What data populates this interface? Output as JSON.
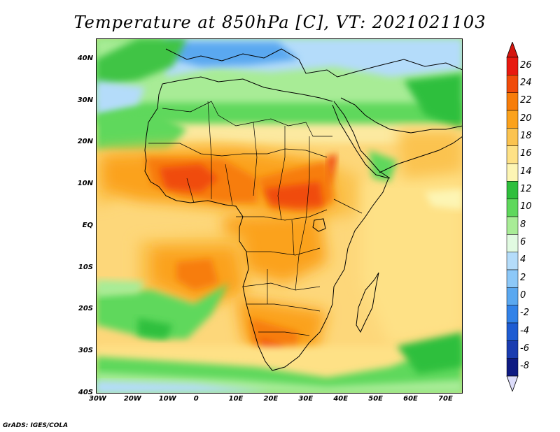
{
  "title": "Temperature at 850hPa [C], VT: 2021021103",
  "footer": "GrADS: IGES/COLA",
  "map": {
    "region": "Africa",
    "lon_range": [
      -30,
      75
    ],
    "lat_range": [
      -40,
      45
    ],
    "lat_ticks": [
      {
        "value": 40,
        "label": "40N"
      },
      {
        "value": 30,
        "label": "30N"
      },
      {
        "value": 20,
        "label": "20N"
      },
      {
        "value": 10,
        "label": "10N"
      },
      {
        "value": 0,
        "label": "EQ"
      },
      {
        "value": -10,
        "label": "10S"
      },
      {
        "value": -20,
        "label": "20S"
      },
      {
        "value": -30,
        "label": "30S"
      },
      {
        "value": -40,
        "label": "40S"
      }
    ],
    "lon_ticks": [
      {
        "value": -30,
        "label": "30W"
      },
      {
        "value": -20,
        "label": "20W"
      },
      {
        "value": -10,
        "label": "10W"
      },
      {
        "value": 0,
        "label": "0"
      },
      {
        "value": 10,
        "label": "10E"
      },
      {
        "value": 20,
        "label": "20E"
      },
      {
        "value": 30,
        "label": "30E"
      },
      {
        "value": 40,
        "label": "40E"
      },
      {
        "value": 50,
        "label": "50E"
      },
      {
        "value": 60,
        "label": "60E"
      },
      {
        "value": 70,
        "label": "70E"
      }
    ]
  },
  "colorbar": {
    "labels": [
      "26",
      "24",
      "22",
      "20",
      "18",
      "16",
      "14",
      "12",
      "10",
      "8",
      "6",
      "4",
      "2",
      "0",
      "-2",
      "-4",
      "-6",
      "-8"
    ],
    "colors": [
      "#e8190f",
      "#f04b0a",
      "#f77d0a",
      "#fba21c",
      "#fbc350",
      "#fee186",
      "#fdf5b4",
      "#2fbf3c",
      "#5fd85c",
      "#a8ec96",
      "#e1fae1",
      "#b4dcfa",
      "#8cc8f8",
      "#5aa8f0",
      "#3282e8",
      "#1e5cd2",
      "#1a3cb0",
      "#0e1a82"
    ],
    "upper_arrow_color": "#d4150e",
    "lower_arrow_color": "#dcdcfa"
  }
}
